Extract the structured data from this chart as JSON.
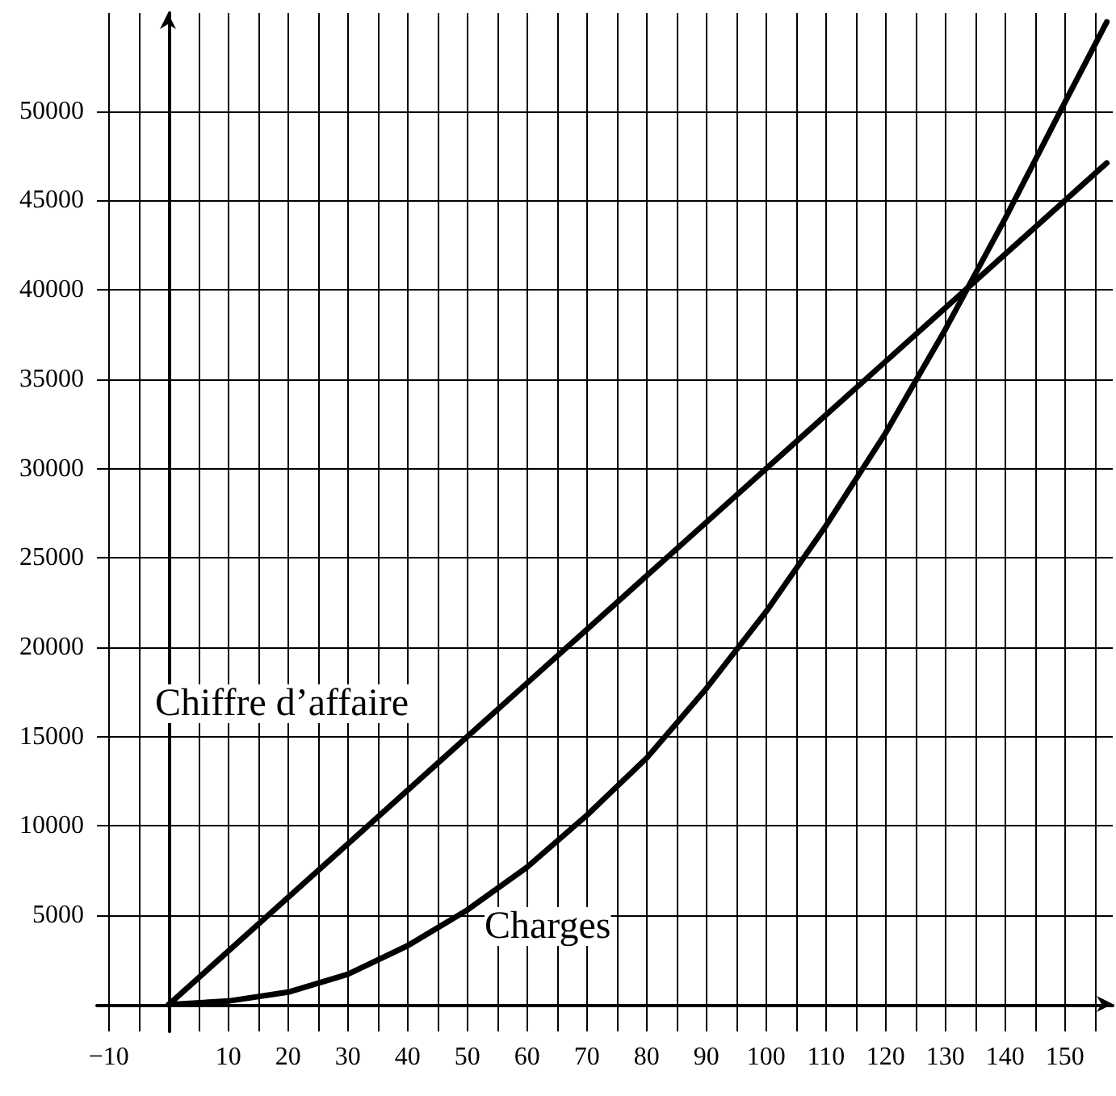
{
  "chart_data": {
    "type": "line",
    "x": [
      0,
      10,
      20,
      30,
      40,
      50,
      60,
      70,
      80,
      90,
      100,
      110,
      120,
      130,
      140,
      150,
      157
    ],
    "series": [
      {
        "color": "#000000",
        "values": [
          0,
          3000,
          6000,
          9000,
          12000,
          15000,
          18000,
          21000,
          24000,
          27000,
          30000,
          33000,
          36000,
          39000,
          42000,
          45000,
          47100
        ]
      },
      {
        "color": "#000000",
        "values": [
          0,
          200,
          700,
          1700,
          3300,
          5300,
          7700,
          10600,
          13800,
          17700,
          22000,
          26800,
          32000,
          37800,
          44000,
          50500,
          55000
        ]
      }
    ],
    "annotations": [
      "Chiffre d’affaire",
      "Charges"
    ],
    "xlim": [
      -12,
      158
    ],
    "xticks": [
      {
        "value": -10,
        "label": "−10"
      },
      {
        "value": -5,
        "label": null
      },
      {
        "value": 0,
        "label": null
      },
      {
        "value": 5,
        "label": null
      },
      10,
      {
        "value": 15,
        "label": null
      },
      20,
      {
        "value": 25,
        "label": null
      },
      30,
      {
        "value": 35,
        "label": null
      },
      40,
      {
        "value": 45,
        "label": null
      },
      50,
      {
        "value": 55,
        "label": null
      },
      60,
      {
        "value": 65,
        "label": null
      },
      70,
      {
        "value": 75,
        "label": null
      },
      80,
      {
        "value": 85,
        "label": null
      },
      90,
      {
        "value": 95,
        "label": null
      },
      100,
      {
        "value": 105,
        "label": null
      },
      110,
      {
        "value": 115,
        "label": null
      },
      120,
      {
        "value": 125,
        "label": null
      },
      130,
      {
        "value": 135,
        "label": null
      },
      140,
      {
        "value": 145,
        "label": null
      },
      150,
      {
        "value": 155,
        "label": null
      }
    ],
    "ylim": [
      -1500,
      55500
    ],
    "yticks": [
      5000,
      10000,
      15000,
      20000,
      25000,
      30000,
      35000,
      40000,
      45000,
      50000
    ],
    "grid": true,
    "marker": "none",
    "line_style": "solid"
  }
}
